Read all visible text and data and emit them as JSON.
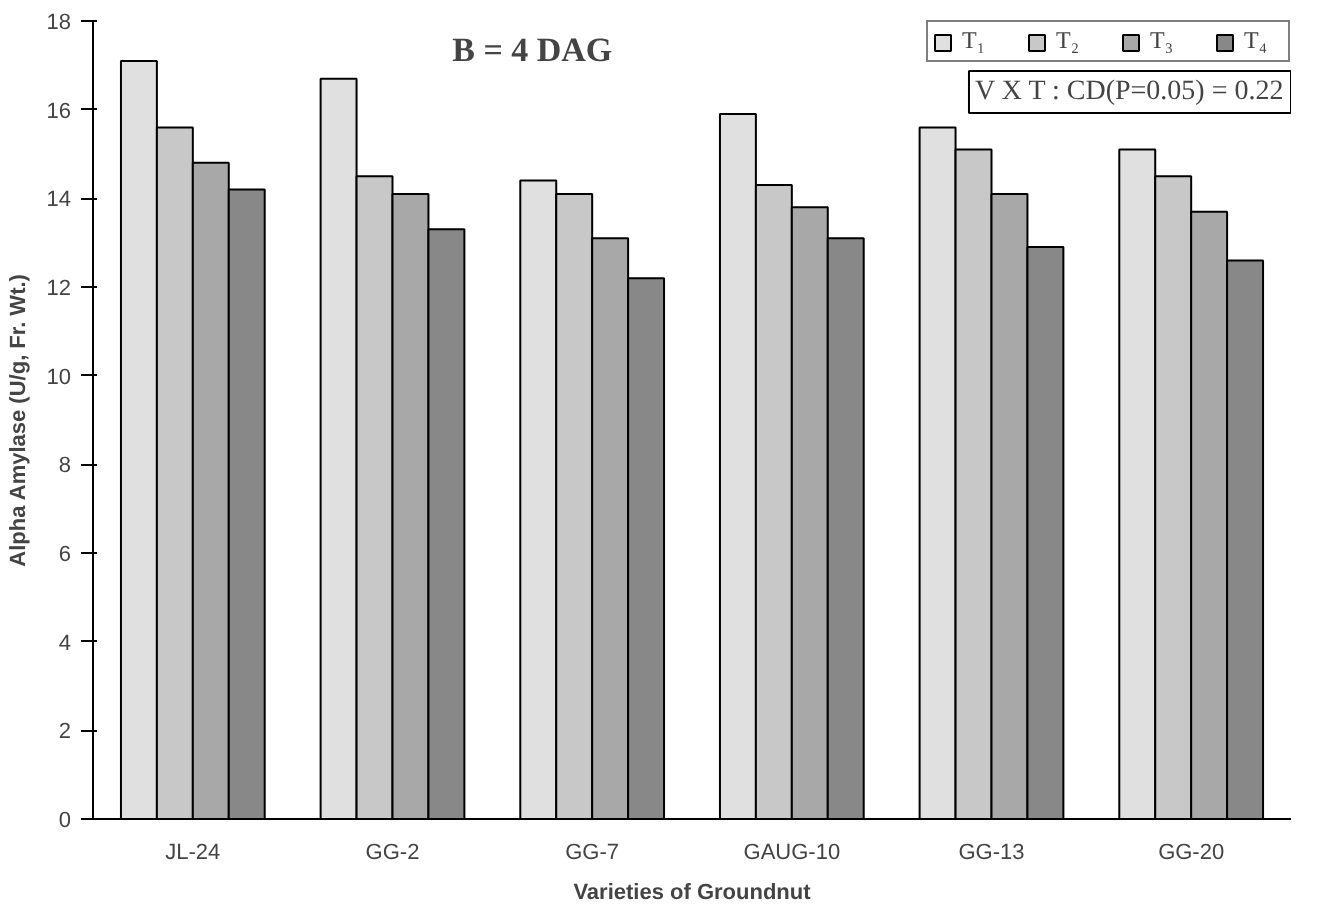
{
  "chart_data": {
    "type": "bar",
    "title": "B = 4 DAG",
    "xlabel": "Varieties of Groundnut",
    "ylabel": "Alpha Amylase (U/g, Fr. Wt.)",
    "categories": [
      "JL-24",
      "GG-2",
      "GG-7",
      "GAUG-10",
      "GG-13",
      "GG-20"
    ],
    "series": [
      {
        "name": "T₁",
        "color": "#e0e0e0",
        "values": [
          17.1,
          16.7,
          14.4,
          15.9,
          15.6,
          15.1
        ]
      },
      {
        "name": "T₂",
        "color": "#c8c8c8",
        "values": [
          15.6,
          14.5,
          14.1,
          14.3,
          15.1,
          14.5
        ]
      },
      {
        "name": "T₃",
        "color": "#a8a8a8",
        "values": [
          14.8,
          14.1,
          13.1,
          13.8,
          14.1,
          13.7
        ]
      },
      {
        "name": "T₄",
        "color": "#888888",
        "values": [
          14.2,
          13.3,
          12.2,
          13.1,
          12.9,
          12.6
        ]
      }
    ],
    "ylim": [
      0,
      18
    ],
    "yticks": [
      0,
      2,
      4,
      6,
      8,
      10,
      12,
      14,
      16,
      18
    ],
    "grid": false,
    "legend": "top right",
    "annotations": [
      "V X T : CD(P=0.05) = 0.22"
    ]
  }
}
